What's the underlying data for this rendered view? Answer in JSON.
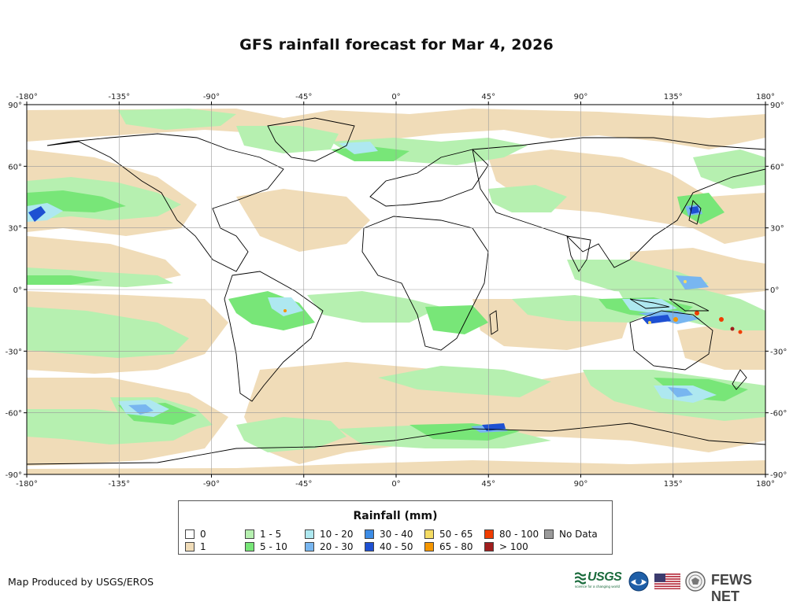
{
  "title": "GFS rainfall forecast for Mar 4, 2026",
  "map": {
    "lon_ticks": [
      "-180°",
      "-135°",
      "-90°",
      "-45°",
      "0°",
      "45°",
      "90°",
      "135°",
      "180°"
    ],
    "lat_ticks": [
      "90°",
      "60°",
      "30°",
      "0°",
      "-30°",
      "-60°",
      "-90°"
    ],
    "lon_range": [
      -180,
      180
    ],
    "lat_range": [
      -90,
      90
    ]
  },
  "legend": {
    "title": "Rainfall (mm)",
    "items": [
      {
        "label": "0",
        "color": "#ffffff"
      },
      {
        "label": "1",
        "color": "#f0dcb8"
      },
      {
        "label": "1 - 5",
        "color": "#b6f0b0"
      },
      {
        "label": "5 - 10",
        "color": "#78e678"
      },
      {
        "label": "10 - 20",
        "color": "#aee8f0"
      },
      {
        "label": "20 - 30",
        "color": "#78b6f0"
      },
      {
        "label": "30 - 40",
        "color": "#3c8ce6"
      },
      {
        "label": "40 - 50",
        "color": "#1e50d2"
      },
      {
        "label": "50 - 65",
        "color": "#f5dc64"
      },
      {
        "label": "65 - 80",
        "color": "#f59600"
      },
      {
        "label": "80 - 100",
        "color": "#f03c00"
      },
      {
        "label": "> 100",
        "color": "#a01e1e"
      },
      {
        "label": "No Data",
        "color": "#9a9a9a"
      }
    ]
  },
  "credit": "Map Produced by USGS/EROS",
  "logos": {
    "usgs": "USGS",
    "usgs_tagline": "science for a changing world",
    "fews": "FEWS NET"
  },
  "colors": {
    "land_outline": "#000000",
    "grid": "#9a9a9a"
  }
}
